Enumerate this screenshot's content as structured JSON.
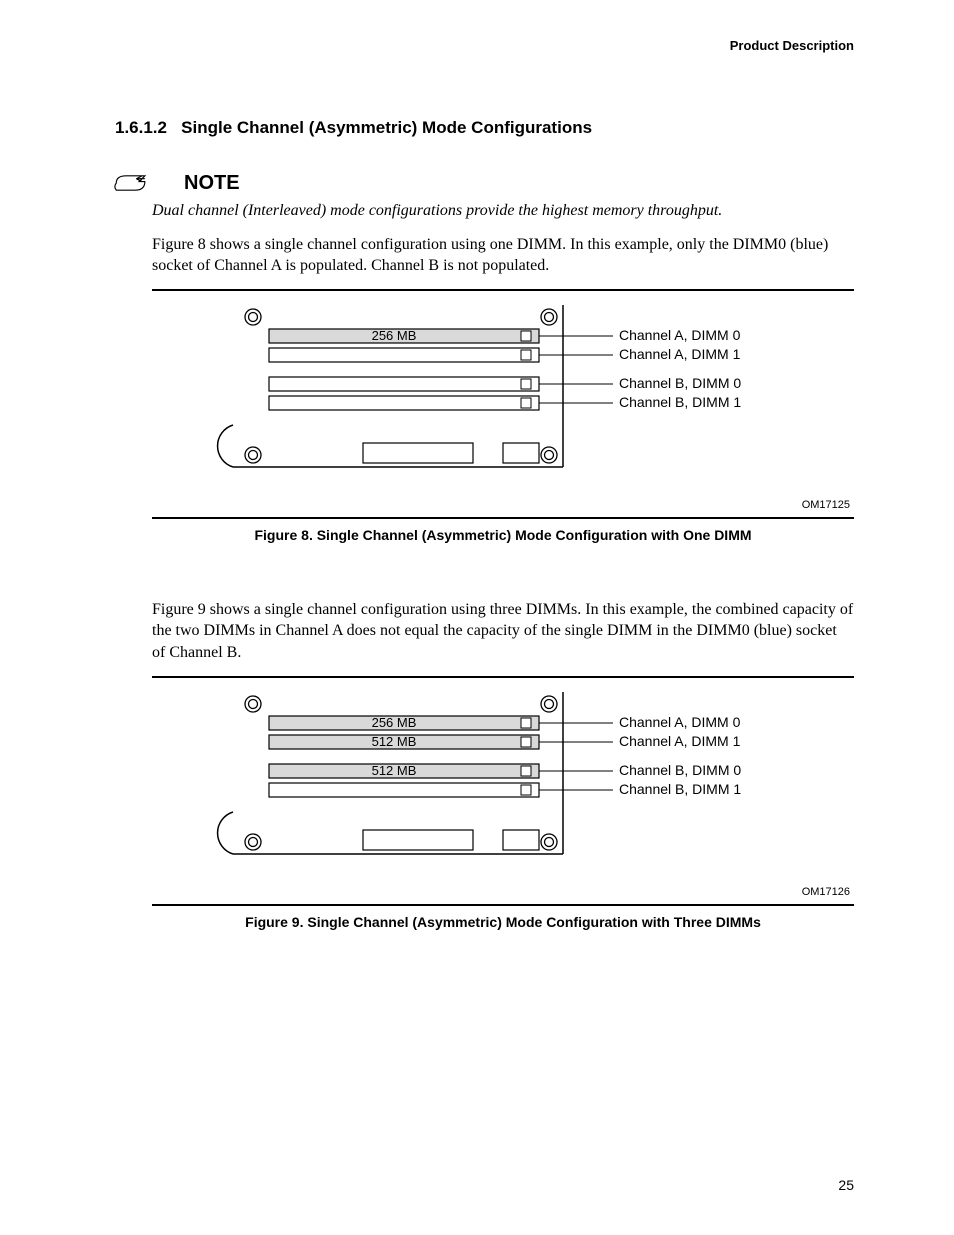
{
  "header": {
    "section": "Product Description"
  },
  "section": {
    "number": "1.6.1.2",
    "title": "Single Channel (Asymmetric) Mode Configurations"
  },
  "note": {
    "label": "NOTE",
    "text": "Dual channel (Interleaved) mode configurations provide the highest memory throughput."
  },
  "para1": "Figure 8 shows a single channel configuration using one DIMM.  In this example, only the DIMM0 (blue) socket of Channel A is populated.  Channel B is not populated.",
  "figure8": {
    "type": "diagram",
    "slots": [
      {
        "capacity": "256 MB",
        "populated": true,
        "label": "Channel A, DIMM 0"
      },
      {
        "capacity": "",
        "populated": false,
        "label": "Channel A, DIMM 1"
      },
      {
        "capacity": "",
        "populated": false,
        "label": "Channel B, DIMM 0"
      },
      {
        "capacity": "",
        "populated": false,
        "label": "Channel B, DIMM 1"
      }
    ],
    "ref_id": "OM17125",
    "caption": "Figure 8.  Single Channel (Asymmetric) Mode Configuration with One DIMM",
    "colors": {
      "populated_fill": "#d9d9d9",
      "empty_fill": "#ffffff",
      "stroke": "#000000",
      "text": "#000000",
      "label_font": "Arial"
    }
  },
  "para2": "Figure 9 shows a single channel configuration using three DIMMs.  In this example, the combined capacity of the two DIMMs in Channel A does not equal the capacity of the single DIMM in the DIMM0 (blue) socket of Channel B.",
  "figure9": {
    "type": "diagram",
    "slots": [
      {
        "capacity": "256 MB",
        "populated": true,
        "label": "Channel A, DIMM 0"
      },
      {
        "capacity": "512 MB",
        "populated": true,
        "label": "Channel A, DIMM 1"
      },
      {
        "capacity": "512 MB",
        "populated": true,
        "label": "Channel B, DIMM 0"
      },
      {
        "capacity": "",
        "populated": false,
        "label": "Channel B, DIMM 1"
      }
    ],
    "ref_id": "OM17126",
    "caption": "Figure 9.  Single Channel (Asymmetric) Mode Configuration with Three DIMMs",
    "colors": {
      "populated_fill": "#d9d9d9",
      "empty_fill": "#ffffff",
      "stroke": "#000000",
      "text": "#000000",
      "label_font": "Arial"
    }
  },
  "page_number": "25"
}
